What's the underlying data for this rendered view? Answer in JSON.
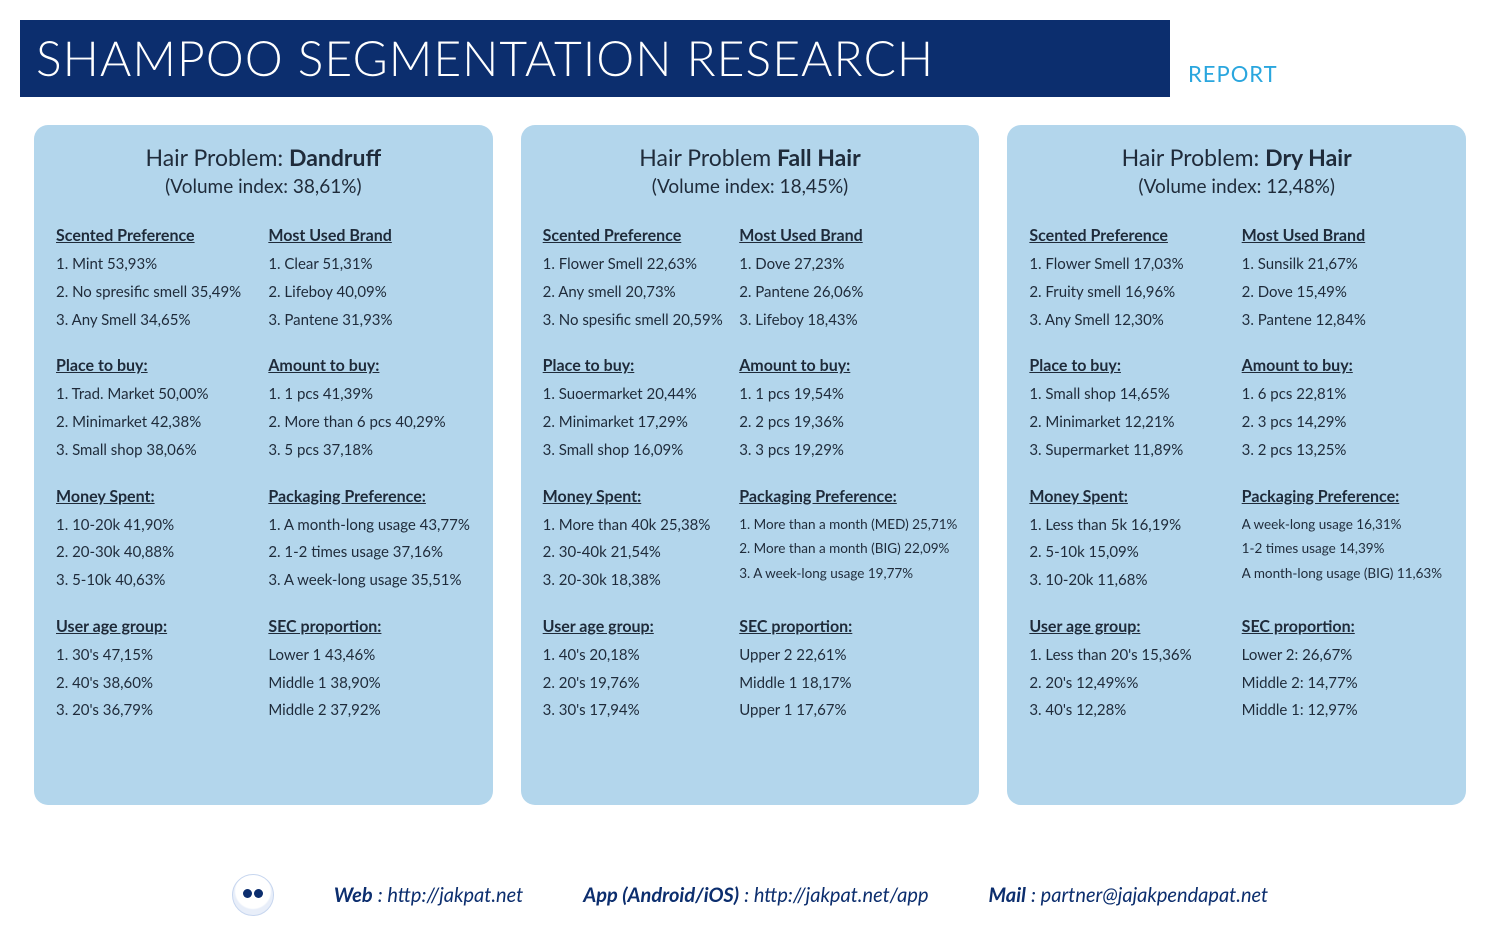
{
  "colors": {
    "header_bg": "#0c2e6e",
    "header_text": "#ffffff",
    "report_label": "#2aa6de",
    "card_bg": "#b3d6ec",
    "body_text": "#1f2b3a",
    "page_bg": "#ffffff"
  },
  "title": "SHAMPOO SEGMENTATION RESEARCH",
  "report_label": "REPORT",
  "cards": [
    {
      "title_prefix": "Hair Problem:  ",
      "title_bold": "Dandruff",
      "volume": "(Volume index: 38,61%)",
      "blocks": [
        {
          "h": "Scented Preference",
          "items": [
            "1. Mint 53,93%",
            "2. No spresific smell 35,49%",
            "3. Any Smell 34,65%"
          ]
        },
        {
          "h": "Most Used Brand",
          "items": [
            "1. Clear 51,31%",
            "2. Lifeboy 40,09%",
            "3. Pantene 31,93%"
          ]
        },
        {
          "h": "Place to buy:",
          "items": [
            "1. Trad. Market 50,00%",
            "2. Minimarket 42,38%",
            "3. Small shop 38,06%"
          ]
        },
        {
          "h": "Amount to buy:",
          "items": [
            "1. 1 pcs 41,39%",
            "2. More than 6 pcs 40,29%",
            "3. 5 pcs 37,18%"
          ]
        },
        {
          "h": "Money Spent:",
          "items": [
            "1. 10-20k 41,90%",
            "2. 20-30k 40,88%",
            "3. 5-10k 40,63%"
          ]
        },
        {
          "h": "Packaging Preference:",
          "items": [
            "1. A month-long usage 43,77%",
            "2. 1-2 times usage 37,16%",
            "3. A week-long usage  35,51%"
          ]
        },
        {
          "h": "User age group:",
          "items": [
            "1. 30's 47,15%",
            "2. 40's 38,60%",
            "3. 20's 36,79%"
          ]
        },
        {
          "h": "SEC proportion:",
          "items": [
            "Lower 1 43,46%",
            "Middle 1 38,90%",
            "Middle 2 37,92%"
          ]
        }
      ]
    },
    {
      "title_prefix": "Hair Problem ",
      "title_bold": "Fall Hair",
      "volume": "(Volume index: 18,45%)",
      "blocks": [
        {
          "h": "Scented Preference",
          "items": [
            "1. Flower Smell 22,63%",
            "2. Any smell 20,73%",
            "3. No spesific smell 20,59%"
          ]
        },
        {
          "h": "Most Used Brand",
          "items": [
            "1. Dove 27,23%",
            "2. Pantene 26,06%",
            "3. Lifeboy 18,43%"
          ]
        },
        {
          "h": "Place to buy:",
          "items": [
            "1. Suoermarket 20,44%",
            "2. Minimarket 17,29%",
            "3. Small shop 16,09%"
          ]
        },
        {
          "h": "Amount to buy:",
          "items": [
            "1. 1 pcs  19,54%",
            "2.  2 pcs  19,36%",
            "3.  3 pcs  19,29%"
          ]
        },
        {
          "h": "Money Spent:",
          "items": [
            "1. More than 40k 25,38%",
            "2. 30-40k 21,54%",
            "3. 20-30k 18,38%"
          ]
        },
        {
          "h": "Packaging Preference:",
          "small": true,
          "items": [
            "1. More than a month (MED) 25,71%",
            "2. More than a month (BIG) 22,09%",
            "3. A week-long usage  19,77%"
          ]
        },
        {
          "h": "User age group:",
          "items": [
            "1. 40's 20,18%",
            "2. 20's 19,76%",
            "3. 30's 17,94%"
          ]
        },
        {
          "h": "SEC proportion:",
          "items": [
            "Upper 2 22,61%",
            "Middle 1 18,17%",
            "Upper 1 17,67%"
          ]
        }
      ]
    },
    {
      "title_prefix": "Hair Problem: ",
      "title_bold": "Dry Hair",
      "volume": "(Volume index: 12,48%)",
      "blocks": [
        {
          "h": "Scented Preference",
          "items": [
            "1. Flower Smell 17,03%",
            "2. Fruity smell 16,96%",
            "3. Any Smell 12,30%"
          ]
        },
        {
          "h": "Most Used Brand",
          "items": [
            "1. Sunsilk 21,67%",
            "2. Dove 15,49%",
            "3. Pantene 12,84%"
          ]
        },
        {
          "h": "Place to buy:",
          "items": [
            "1. Small shop 14,65%",
            "2. Minimarket 12,21%",
            "3. Supermarket 11,89%"
          ]
        },
        {
          "h": "Amount to buy:",
          "items": [
            "1. 6 pcs  22,81%",
            "2. 3 pcs  14,29%",
            "3. 2 pcs 13,25%"
          ]
        },
        {
          "h": "Money Spent:",
          "items": [
            "1. Less than 5k 16,19%",
            "2. 5-10k 15,09%",
            "3. 10-20k 11,68%"
          ]
        },
        {
          "h": "Packaging Preference:",
          "small": true,
          "items": [
            "A week-long usage  16,31%",
            "1-2 times usage 14,39%",
            "A month-long usage (BIG) 11,63%"
          ]
        },
        {
          "h": "User age group:",
          "items": [
            "1. Less than 20's 15,36%",
            "2. 20's 12,49%%",
            "3. 40's 12,28%"
          ]
        },
        {
          "h": "SEC proportion:",
          "items": [
            "Lower 2: 26,67%",
            "Middle 2: 14,77%",
            "Middle 1: 12,97%"
          ]
        }
      ]
    }
  ],
  "footer": {
    "web_label": "Web",
    "web_value": ": http://jakpat.net",
    "app_label": "App (Android/iOS)",
    "app_value": ": http://jakpat.net/app",
    "mail_label": "Mail",
    "mail_value": ": partner@jajakpendapat.net"
  }
}
